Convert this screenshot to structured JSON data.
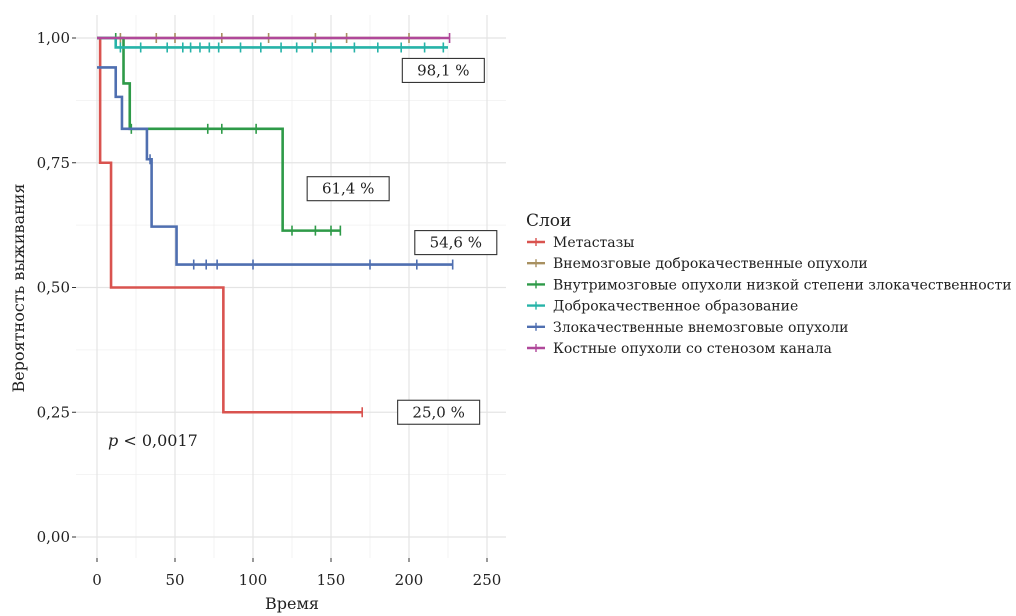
{
  "chart_data": {
    "type": "line",
    "subtype": "kaplan-meier",
    "xlabel": "Время",
    "ylabel": "Вероятность выживания",
    "xlim": [
      0,
      250
    ],
    "ylim": [
      0,
      1
    ],
    "x_ticks": [
      "0",
      "50",
      "100",
      "150",
      "200",
      "250"
    ],
    "y_ticks": [
      "0,00",
      "0,25",
      "0,50",
      "0,75",
      "1,00"
    ],
    "grid": true,
    "legend": {
      "title": "Слои",
      "placement": "right"
    },
    "p_value": {
      "prefix": "p",
      "text": " < 0,0017"
    },
    "series": [
      {
        "name": "Метастазы",
        "color": "#d9534f",
        "steps": [
          [
            0,
            1.0
          ],
          [
            2,
            0.75
          ],
          [
            9,
            0.5
          ],
          [
            81,
            0.25
          ],
          [
            170,
            0.25
          ]
        ],
        "censored": [
          170
        ]
      },
      {
        "name": "Внемозговые доброкачественные опухоли",
        "color": "#a89060",
        "steps": [
          [
            0,
            1.0
          ],
          [
            220,
            1.0
          ]
        ],
        "censored": [
          15,
          38,
          50,
          80,
          110,
          140,
          160,
          200
        ]
      },
      {
        "name": "Внутримозговые опухоли низкой степени злокачественности",
        "color": "#2e9a48",
        "steps": [
          [
            0,
            1.0
          ],
          [
            17,
            0.909
          ],
          [
            21,
            0.818
          ],
          [
            119,
            0.614
          ],
          [
            156,
            0.614
          ]
        ],
        "censored": [
          12,
          22,
          71,
          80,
          102,
          125,
          140,
          150,
          156
        ]
      },
      {
        "name": "Доброкачественное образование",
        "color": "#26b3a8",
        "steps": [
          [
            0,
            1.0
          ],
          [
            12,
            0.981
          ],
          [
            225,
            0.981
          ]
        ],
        "censored": [
          15,
          28,
          45,
          55,
          60,
          66,
          72,
          78,
          92,
          105,
          118,
          128,
          138,
          150,
          165,
          180,
          195,
          210,
          222
        ]
      },
      {
        "name": "Злокачественные внемозговые опухоли",
        "color": "#4f6fb0",
        "steps": [
          [
            0,
            0.941
          ],
          [
            12,
            0.882
          ],
          [
            16,
            0.818
          ],
          [
            32,
            0.757
          ],
          [
            35,
            0.622
          ],
          [
            51,
            0.546
          ],
          [
            228,
            0.546
          ]
        ],
        "censored": [
          34,
          62,
          70,
          77,
          100,
          175,
          205,
          228
        ]
      },
      {
        "name": "Костные опухоли со стенозом канала",
        "color": "#b0489a",
        "steps": [
          [
            0,
            1.0
          ],
          [
            226,
            1.0
          ]
        ],
        "censored": [
          226
        ]
      }
    ],
    "annotations": [
      {
        "text": "98,1 %",
        "x": 222,
        "y": 0.935
      },
      {
        "text": "61,4 %",
        "x": 161,
        "y": 0.698
      },
      {
        "text": "54,6 %",
        "x": 230,
        "y": 0.59
      },
      {
        "text": "25,0 %",
        "x": 219,
        "y": 0.25
      }
    ]
  }
}
